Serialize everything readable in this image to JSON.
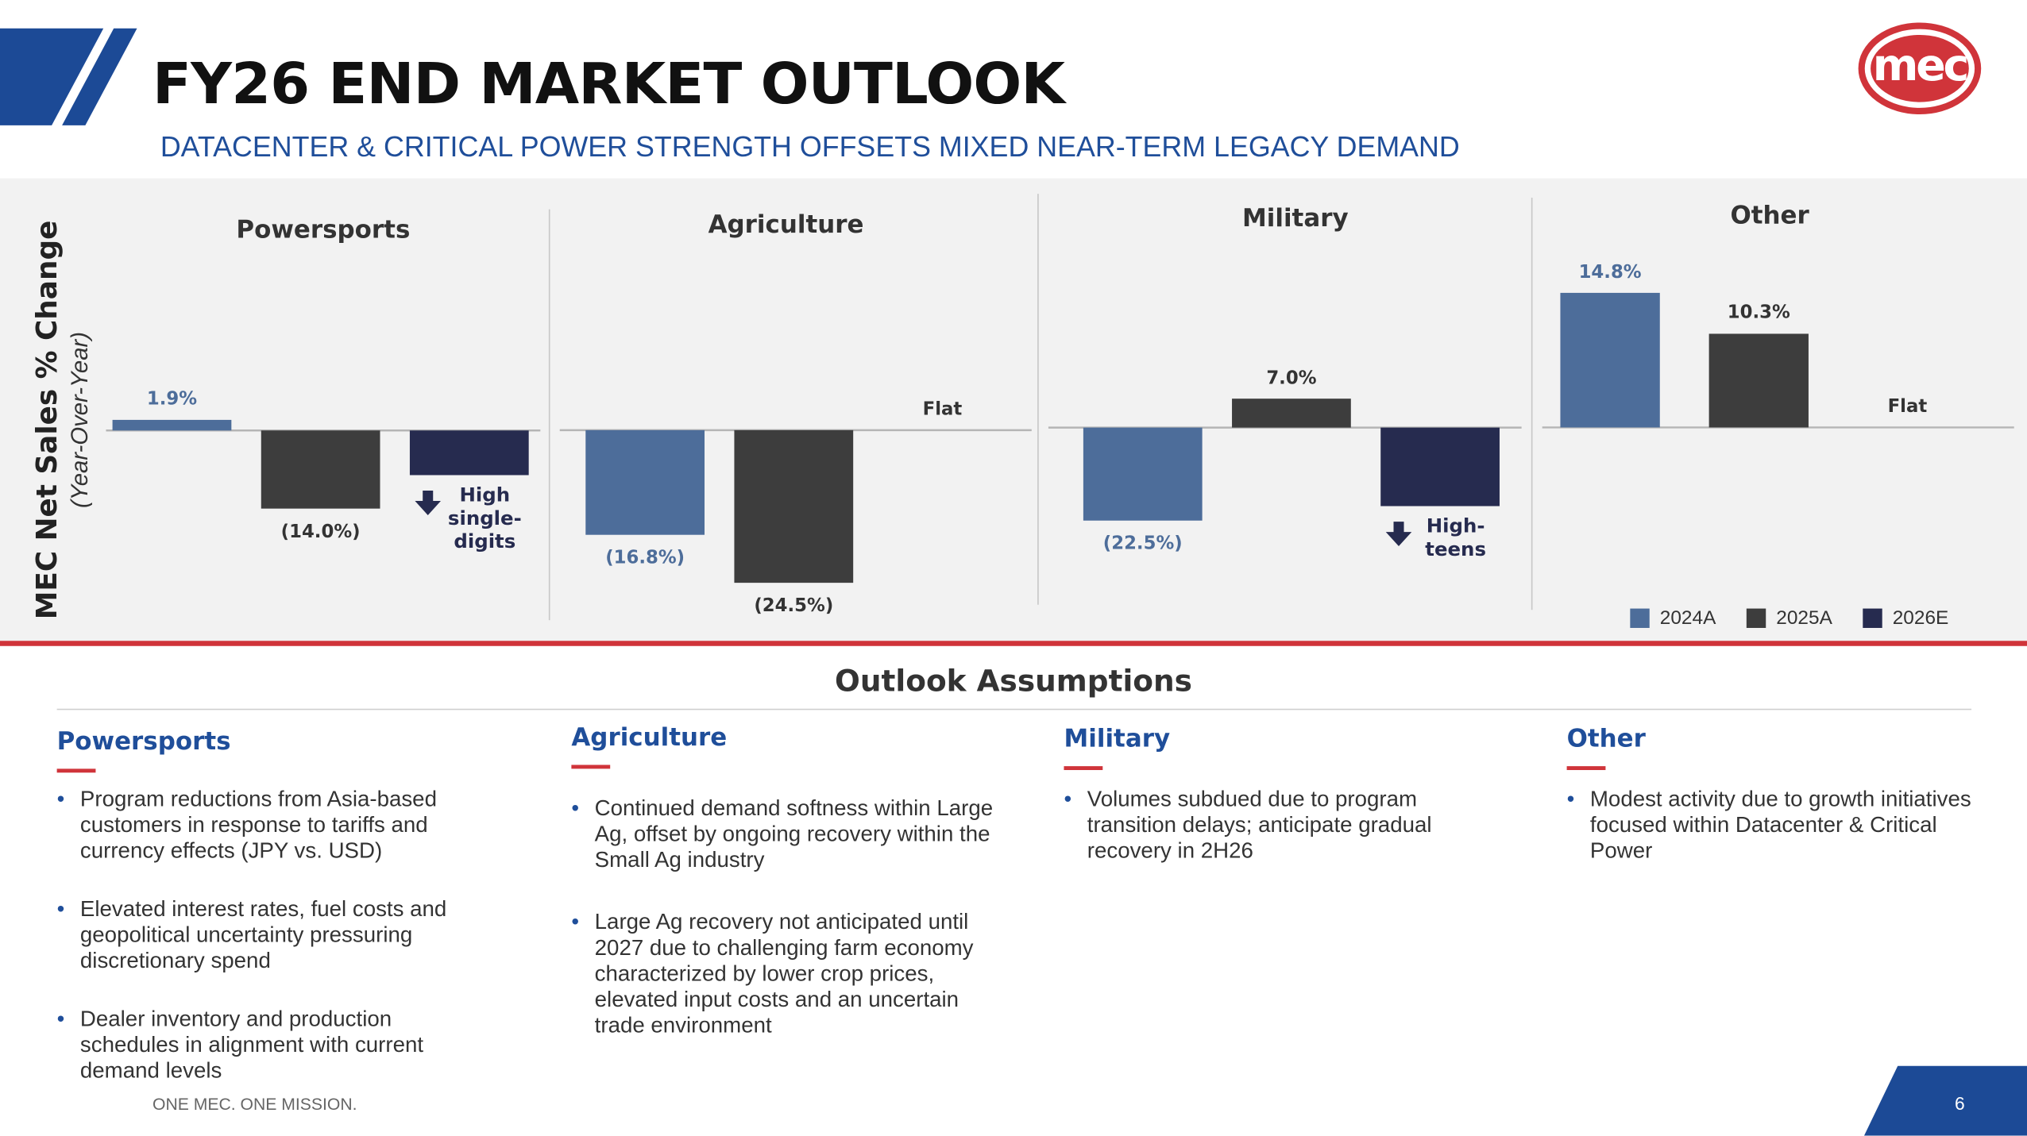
{
  "header": {
    "title": "FY26 END MARKET OUTLOOK",
    "subtitle": "DATACENTER & CRITICAL POWER STRENGTH OFFSETS MIXED NEAR-TERM LEGACY DEMAND",
    "logo": "mec"
  },
  "chart_axis": {
    "title": "MEC Net Sales % Change",
    "subtitle": "(Year-Over-Year)"
  },
  "chart_data": [
    {
      "type": "bar",
      "title": "Powersports",
      "categories": [
        "2024A",
        "2025A",
        "2026E"
      ],
      "colors": [
        "#4d6d9a",
        "#3d3d3d",
        "#262b4f"
      ],
      "values": [
        1.9,
        -14.0,
        -8
      ],
      "value_labels": [
        "1.9%",
        "(14.0%)",
        "High single-digits"
      ],
      "markers": [
        null,
        null,
        "down"
      ],
      "ylim": [
        -34,
        32
      ]
    },
    {
      "type": "bar",
      "title": "Agriculture",
      "categories": [
        "2024A",
        "2025A",
        "2026E"
      ],
      "colors": [
        "#4d6d9a",
        "#3d3d3d",
        "#262b4f"
      ],
      "values": [
        -16.8,
        -24.5,
        0
      ],
      "value_labels": [
        "(16.8%)",
        "(24.5%)",
        "Flat"
      ],
      "ylim": [
        -30.5,
        28.6
      ]
    },
    {
      "type": "bar",
      "title": "Military",
      "categories": [
        "2024A",
        "2025A",
        "2026E"
      ],
      "colors": [
        "#4d6d9a",
        "#3d3d3d",
        "#262b4f"
      ],
      "values": [
        -22.5,
        7.0,
        -19
      ],
      "value_labels": [
        "(22.5%)",
        "7.0%",
        "High-teens"
      ],
      "markers": [
        null,
        null,
        "down"
      ],
      "ylim": [
        -46.6,
        42.5
      ]
    },
    {
      "type": "bar",
      "title": "Other",
      "categories": [
        "2024A",
        "2025A",
        "2026E"
      ],
      "colors": [
        "#4d6d9a",
        "#3d3d3d",
        "#262b4f"
      ],
      "values": [
        14.8,
        10.3,
        0
      ],
      "value_labels": [
        "14.8%",
        "10.3%",
        "Flat"
      ],
      "ylim": [
        -21.2,
        19.3
      ],
      "legend": "bottom-right"
    }
  ],
  "assumptions": {
    "title": "Outlook Assumptions",
    "columns": [
      {
        "heading": "Powersports",
        "bullets": [
          "Program reductions from Asia-based customers in response to tariffs and currency effects (JPY vs. USD)",
          "Elevated interest rates, fuel costs and geopolitical uncertainty pressuring discretionary spend",
          "Dealer inventory and production schedules in alignment with current demand levels"
        ]
      },
      {
        "heading": "Agriculture",
        "bullets": [
          "Continued demand softness within Large Ag, offset by ongoing recovery within the Small Ag industry",
          "Large Ag recovery not anticipated until 2027 due to challenging farm economy characterized by lower crop prices,  elevated input costs and an uncertain trade environment"
        ]
      },
      {
        "heading": "Military",
        "bullets": [
          "Volumes subdued due to program transition delays; anticipate gradual recovery in 2H26"
        ]
      },
      {
        "heading": "Other",
        "bullets": [
          "Modest activity due to growth initiatives focused within Datacenter & Critical Power"
        ]
      }
    ]
  },
  "footer": {
    "tagline": "ONE MEC. ONE MISSION.",
    "page": 6
  }
}
